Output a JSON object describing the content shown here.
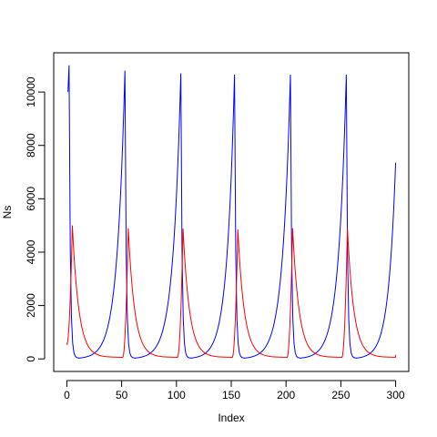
{
  "chart_data": {
    "type": "line",
    "title": "",
    "xlabel": "Index",
    "ylabel": "Ns",
    "xlim": [
      0,
      300
    ],
    "ylim": [
      0,
      11000
    ],
    "x_ticks": [
      0,
      50,
      100,
      150,
      200,
      250,
      300
    ],
    "x_tick_labels": [
      "0",
      "50",
      "100",
      "150",
      "200",
      "250",
      "300"
    ],
    "y_ticks": [
      0,
      2000,
      4000,
      6000,
      8000,
      10000
    ],
    "y_tick_labels": [
      "0",
      "2000",
      "4000",
      "6000",
      "8000",
      "10000"
    ],
    "grid": false,
    "legend": "none",
    "series": [
      {
        "color": "#0000ff",
        "peaks": [
          {
            "x": 2,
            "y": 11000
          },
          {
            "x": 53,
            "y": 10800
          },
          {
            "x": 104,
            "y": 10700
          },
          {
            "x": 153,
            "y": 10650
          },
          {
            "x": 204,
            "y": 10650
          },
          {
            "x": 255,
            "y": 10650
          }
        ],
        "troughs": [
          {
            "x": 12,
            "y": 30
          },
          {
            "x": 62,
            "y": 30
          },
          {
            "x": 112,
            "y": 30
          },
          {
            "x": 162,
            "y": 30
          },
          {
            "x": 212,
            "y": 30
          },
          {
            "x": 262,
            "y": 30
          }
        ],
        "start": {
          "x": 1,
          "y": 10000
        },
        "end": {
          "x": 300,
          "y": 7350
        }
      },
      {
        "color": "#ff0000",
        "peaks": [
          {
            "x": 5,
            "y": 5000
          },
          {
            "x": 56,
            "y": 4900
          },
          {
            "x": 106,
            "y": 4880
          },
          {
            "x": 156,
            "y": 4850
          },
          {
            "x": 206,
            "y": 4900
          },
          {
            "x": 256,
            "y": 4900
          }
        ],
        "start": {
          "x": 1,
          "y": 550
        },
        "end": {
          "x": 300,
          "y": 150
        }
      }
    ]
  }
}
